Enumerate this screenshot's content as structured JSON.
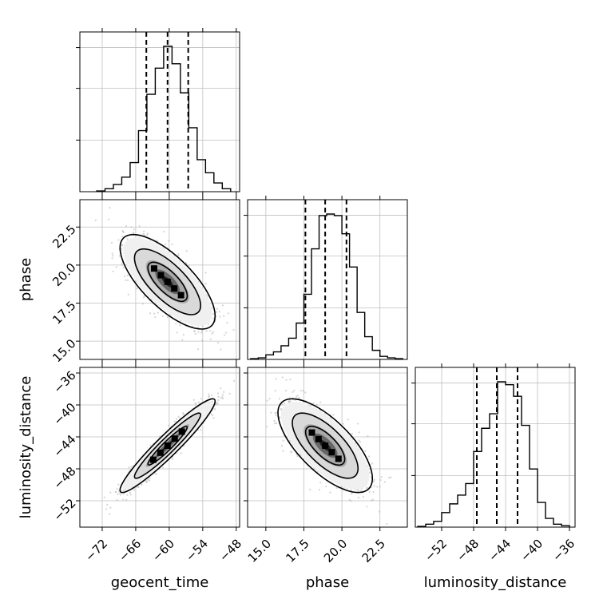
{
  "chart_data": {
    "type": "corner",
    "parameters": [
      "geocent_time",
      "phase",
      "luminosity_distance"
    ],
    "axis_labels": {
      "x": [
        "geocent_time",
        "phase",
        "luminosity_distance"
      ],
      "y": [
        "",
        "phase",
        "luminosity_distance"
      ]
    },
    "ranges": {
      "geocent_time": [
        -76,
        -47.4
      ],
      "phase": [
        13.8,
        24.3
      ],
      "luminosity_distance": [
        -55.3,
        -35.3
      ]
    },
    "ticks": {
      "geocent_time": [
        -72,
        -66,
        -60,
        -54,
        -48
      ],
      "phase": [
        15.0,
        17.5,
        20.0,
        22.5
      ],
      "luminosity_distance": [
        -52,
        -48,
        -44,
        -40,
        -36
      ]
    },
    "tick_labels": {
      "geocent_time": [
        "−72",
        "−66",
        "−60",
        "−54",
        "−48"
      ],
      "phase": [
        "15.0",
        "17.5",
        "20.0",
        "22.5"
      ],
      "luminosity_distance": [
        "−52",
        "−48",
        "−44",
        "−40",
        "−36"
      ]
    },
    "summary_lines": {
      "geocent_time": {
        "q16": -64.1,
        "median": -60.3,
        "q84": -56.6
      },
      "phase": {
        "q16": 17.6,
        "median": 18.9,
        "q84": 20.3
      },
      "luminosity_distance": {
        "q16": -47.6,
        "median": -45.1,
        "q84": -42.5
      }
    },
    "histograms": {
      "geocent_time": {
        "bin_edges": [
          -73.0,
          -71.5,
          -70.0,
          -68.5,
          -67.0,
          -65.5,
          -64.0,
          -62.5,
          -61.0,
          -59.5,
          -58.0,
          -56.5,
          -55.0,
          -53.5,
          -52.0,
          -50.5,
          -49.0
        ],
        "counts": [
          0.5,
          2,
          5,
          10,
          20,
          42,
          67,
          85,
          100,
          88,
          68,
          44,
          22,
          13,
          6,
          2
        ]
      },
      "phase": {
        "bin_edges": [
          14.0,
          14.5,
          15.0,
          15.5,
          16.0,
          16.5,
          17.0,
          17.5,
          18.0,
          18.5,
          19.0,
          19.5,
          20.0,
          20.5,
          21.0,
          21.5,
          22.0,
          22.5,
          23.0,
          23.5,
          24.0
        ],
        "counts": [
          0.5,
          1,
          3,
          5,
          9,
          14,
          24,
          43,
          73,
          95,
          96,
          95,
          83,
          61,
          31,
          15,
          6,
          2,
          1,
          0.5
        ]
      },
      "luminosity_distance": {
        "bin_edges": [
          -55.0,
          -54.0,
          -53.0,
          -52.0,
          -51.0,
          -50.0,
          -49.0,
          -48.0,
          -47.0,
          -46.0,
          -45.0,
          -44.0,
          -43.0,
          -42.0,
          -41.0,
          -40.0,
          -39.0,
          -38.0,
          -37.0,
          -36.0
        ],
        "counts": [
          0.5,
          2,
          4,
          10,
          16,
          22,
          30,
          52,
          68,
          78,
          100,
          98,
          90,
          70,
          40,
          17,
          6,
          2,
          1
        ]
      }
    },
    "joint_panels": [
      {
        "x": "geocent_time",
        "y": "phase",
        "center": [
          -60.3,
          18.9
        ],
        "std": [
          3.7,
          1.35
        ],
        "correlation": -0.72
      },
      {
        "x": "geocent_time",
        "y": "luminosity_distance",
        "center": [
          -60.3,
          -45.1
        ],
        "std": [
          3.7,
          2.55
        ],
        "correlation": 0.95
      },
      {
        "x": "phase",
        "y": "luminosity_distance",
        "center": [
          18.9,
          -45.1
        ],
        "std": [
          1.35,
          2.55
        ],
        "correlation": -0.7
      }
    ],
    "grid": true,
    "colors": {
      "line": "#000000",
      "points": "#b3b3b3",
      "grid": "#bfbfbf"
    }
  }
}
